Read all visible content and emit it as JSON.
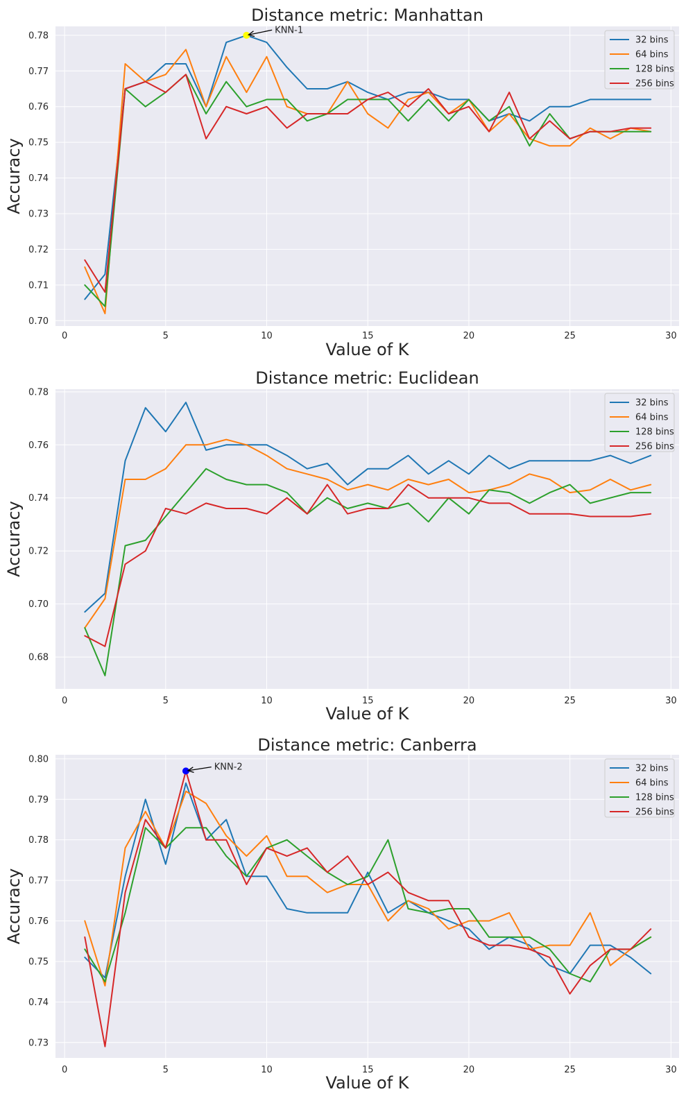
{
  "chart_data": [
    {
      "type": "line",
      "title": "Distance metric: Manhattan",
      "xlabel": "Value of K",
      "ylabel": "Accuracy",
      "xlim": [
        -0.45,
        30.4
      ],
      "ylim": [
        0.6985,
        0.7825
      ],
      "xticks": [
        0,
        5,
        10,
        15,
        20,
        25,
        30
      ],
      "yticks": [
        0.7,
        0.71,
        0.72,
        0.73,
        0.74,
        0.75,
        0.76,
        0.77,
        0.78
      ],
      "ytick_format": 2,
      "grid": true,
      "legend_position": "top-right",
      "x": [
        1,
        2,
        3,
        4,
        5,
        6,
        7,
        8,
        9,
        10,
        11,
        12,
        13,
        14,
        15,
        16,
        17,
        18,
        19,
        20,
        21,
        22,
        23,
        24,
        25,
        26,
        27,
        28,
        29
      ],
      "series": [
        {
          "name": "32 bins",
          "color": "#1f77b4",
          "values": [
            0.706,
            0.713,
            0.765,
            0.767,
            0.772,
            0.772,
            0.76,
            0.778,
            0.78,
            0.778,
            0.771,
            0.765,
            0.765,
            0.767,
            0.764,
            0.762,
            0.764,
            0.764,
            0.762,
            0.762,
            0.756,
            0.758,
            0.756,
            0.76,
            0.76,
            0.762,
            0.762,
            0.762,
            0.762
          ]
        },
        {
          "name": "64 bins",
          "color": "#ff7f0e",
          "values": [
            0.715,
            0.702,
            0.772,
            0.767,
            0.769,
            0.776,
            0.76,
            0.774,
            0.764,
            0.774,
            0.76,
            0.758,
            0.758,
            0.767,
            0.758,
            0.754,
            0.762,
            0.764,
            0.758,
            0.762,
            0.753,
            0.758,
            0.751,
            0.749,
            0.749,
            0.754,
            0.751,
            0.754,
            0.753
          ]
        },
        {
          "name": "128 bins",
          "color": "#2ca02c",
          "values": [
            0.71,
            0.704,
            0.765,
            0.76,
            0.764,
            0.769,
            0.758,
            0.767,
            0.76,
            0.762,
            0.762,
            0.756,
            0.758,
            0.762,
            0.762,
            0.762,
            0.756,
            0.762,
            0.756,
            0.762,
            0.756,
            0.76,
            0.749,
            0.758,
            0.751,
            0.753,
            0.753,
            0.753,
            0.753
          ]
        },
        {
          "name": "256 bins",
          "color": "#d62728",
          "values": [
            0.717,
            0.708,
            0.765,
            0.767,
            0.764,
            0.769,
            0.751,
            0.76,
            0.758,
            0.76,
            0.754,
            0.758,
            0.758,
            0.758,
            0.762,
            0.764,
            0.76,
            0.765,
            0.758,
            0.76,
            0.753,
            0.764,
            0.751,
            0.756,
            0.751,
            0.753,
            0.753,
            0.754,
            0.754
          ]
        }
      ],
      "annotation": {
        "text": "KNN-1",
        "x": 9,
        "y": 0.78,
        "text_x": 10.4,
        "text_y": 0.7807,
        "marker_color": "#ffff00"
      }
    },
    {
      "type": "line",
      "title": "Distance metric: Euclidean",
      "xlabel": "Value of K",
      "ylabel": "Accuracy",
      "xlim": [
        -0.45,
        30.4
      ],
      "ylim": [
        0.668,
        0.781
      ],
      "xticks": [
        0,
        5,
        10,
        15,
        20,
        25,
        30
      ],
      "yticks": [
        0.68,
        0.7,
        0.72,
        0.74,
        0.76,
        0.78
      ],
      "ytick_format": 2,
      "grid": true,
      "legend_position": "top-right",
      "x": [
        1,
        2,
        3,
        4,
        5,
        6,
        7,
        8,
        9,
        10,
        11,
        12,
        13,
        14,
        15,
        16,
        17,
        18,
        19,
        20,
        21,
        22,
        23,
        24,
        25,
        26,
        27,
        28,
        29
      ],
      "series": [
        {
          "name": "32 bins",
          "color": "#1f77b4",
          "values": [
            0.697,
            0.704,
            0.754,
            0.774,
            0.765,
            0.776,
            0.758,
            0.76,
            0.76,
            0.76,
            0.756,
            0.751,
            0.753,
            0.745,
            0.751,
            0.751,
            0.756,
            0.749,
            0.754,
            0.749,
            0.756,
            0.751,
            0.754,
            0.754,
            0.754,
            0.754,
            0.756,
            0.753,
            0.756
          ]
        },
        {
          "name": "64 bins",
          "color": "#ff7f0e",
          "values": [
            0.691,
            0.702,
            0.747,
            0.747,
            0.751,
            0.76,
            0.76,
            0.762,
            0.76,
            0.756,
            0.751,
            0.749,
            0.747,
            0.743,
            0.745,
            0.743,
            0.747,
            0.745,
            0.747,
            0.742,
            0.743,
            0.745,
            0.749,
            0.747,
            0.742,
            0.743,
            0.747,
            0.743,
            0.745
          ]
        },
        {
          "name": "128 bins",
          "color": "#2ca02c",
          "values": [
            0.691,
            0.673,
            0.722,
            0.724,
            0.733,
            0.742,
            0.751,
            0.747,
            0.745,
            0.745,
            0.742,
            0.734,
            0.74,
            0.736,
            0.738,
            0.736,
            0.738,
            0.731,
            0.74,
            0.734,
            0.743,
            0.742,
            0.738,
            0.742,
            0.745,
            0.738,
            0.74,
            0.742,
            0.742
          ]
        },
        {
          "name": "256 bins",
          "color": "#d62728",
          "values": [
            0.688,
            0.684,
            0.715,
            0.72,
            0.736,
            0.734,
            0.738,
            0.736,
            0.736,
            0.734,
            0.74,
            0.734,
            0.745,
            0.734,
            0.736,
            0.736,
            0.745,
            0.74,
            0.74,
            0.74,
            0.738,
            0.738,
            0.734,
            0.734,
            0.734,
            0.733,
            0.733,
            0.733,
            0.734
          ]
        }
      ]
    },
    {
      "type": "line",
      "title": "Distance metric: Canberra",
      "xlabel": "Value of K",
      "ylabel": "Accuracy",
      "xlim": [
        -0.45,
        30.4
      ],
      "ylim": [
        0.7262,
        0.801
      ],
      "xticks": [
        0,
        5,
        10,
        15,
        20,
        25,
        30
      ],
      "yticks": [
        0.73,
        0.74,
        0.75,
        0.76,
        0.77,
        0.78,
        0.79,
        0.8
      ],
      "ytick_format": 2,
      "grid": true,
      "legend_position": "top-right",
      "x": [
        1,
        2,
        3,
        4,
        5,
        6,
        7,
        8,
        9,
        10,
        11,
        12,
        13,
        14,
        15,
        16,
        17,
        18,
        19,
        20,
        21,
        22,
        23,
        24,
        25,
        26,
        27,
        28,
        29
      ],
      "series": [
        {
          "name": "32 bins",
          "color": "#1f77b4",
          "values": [
            0.751,
            0.746,
            0.771,
            0.79,
            0.774,
            0.794,
            0.78,
            0.785,
            0.771,
            0.771,
            0.763,
            0.762,
            0.762,
            0.762,
            0.772,
            0.762,
            0.765,
            0.762,
            0.76,
            0.758,
            0.753,
            0.756,
            0.754,
            0.749,
            0.747,
            0.754,
            0.754,
            0.751,
            0.747
          ]
        },
        {
          "name": "64 bins",
          "color": "#ff7f0e",
          "values": [
            0.76,
            0.744,
            0.778,
            0.787,
            0.778,
            0.792,
            0.789,
            0.781,
            0.776,
            0.781,
            0.771,
            0.771,
            0.767,
            0.769,
            0.769,
            0.76,
            0.765,
            0.763,
            0.758,
            0.76,
            0.76,
            0.762,
            0.753,
            0.754,
            0.754,
            0.762,
            0.749,
            0.753,
            0.756
          ]
        },
        {
          "name": "128 bins",
          "color": "#2ca02c",
          "values": [
            0.753,
            0.745,
            0.762,
            0.783,
            0.778,
            0.783,
            0.783,
            0.776,
            0.771,
            0.778,
            0.78,
            0.776,
            0.772,
            0.769,
            0.771,
            0.78,
            0.763,
            0.762,
            0.763,
            0.763,
            0.756,
            0.756,
            0.756,
            0.753,
            0.747,
            0.745,
            0.753,
            0.753,
            0.756
          ]
        },
        {
          "name": "256 bins",
          "color": "#d62728",
          "values": [
            0.756,
            0.729,
            0.767,
            0.785,
            0.778,
            0.797,
            0.78,
            0.78,
            0.769,
            0.778,
            0.776,
            0.778,
            0.772,
            0.776,
            0.769,
            0.772,
            0.767,
            0.765,
            0.765,
            0.756,
            0.754,
            0.754,
            0.753,
            0.751,
            0.742,
            0.749,
            0.753,
            0.753,
            0.758
          ]
        }
      ],
      "annotation": {
        "text": "KNN-2",
        "x": 6,
        "y": 0.797,
        "text_x": 7.4,
        "text_y": 0.7973,
        "marker_color": "#0000ff"
      }
    }
  ]
}
